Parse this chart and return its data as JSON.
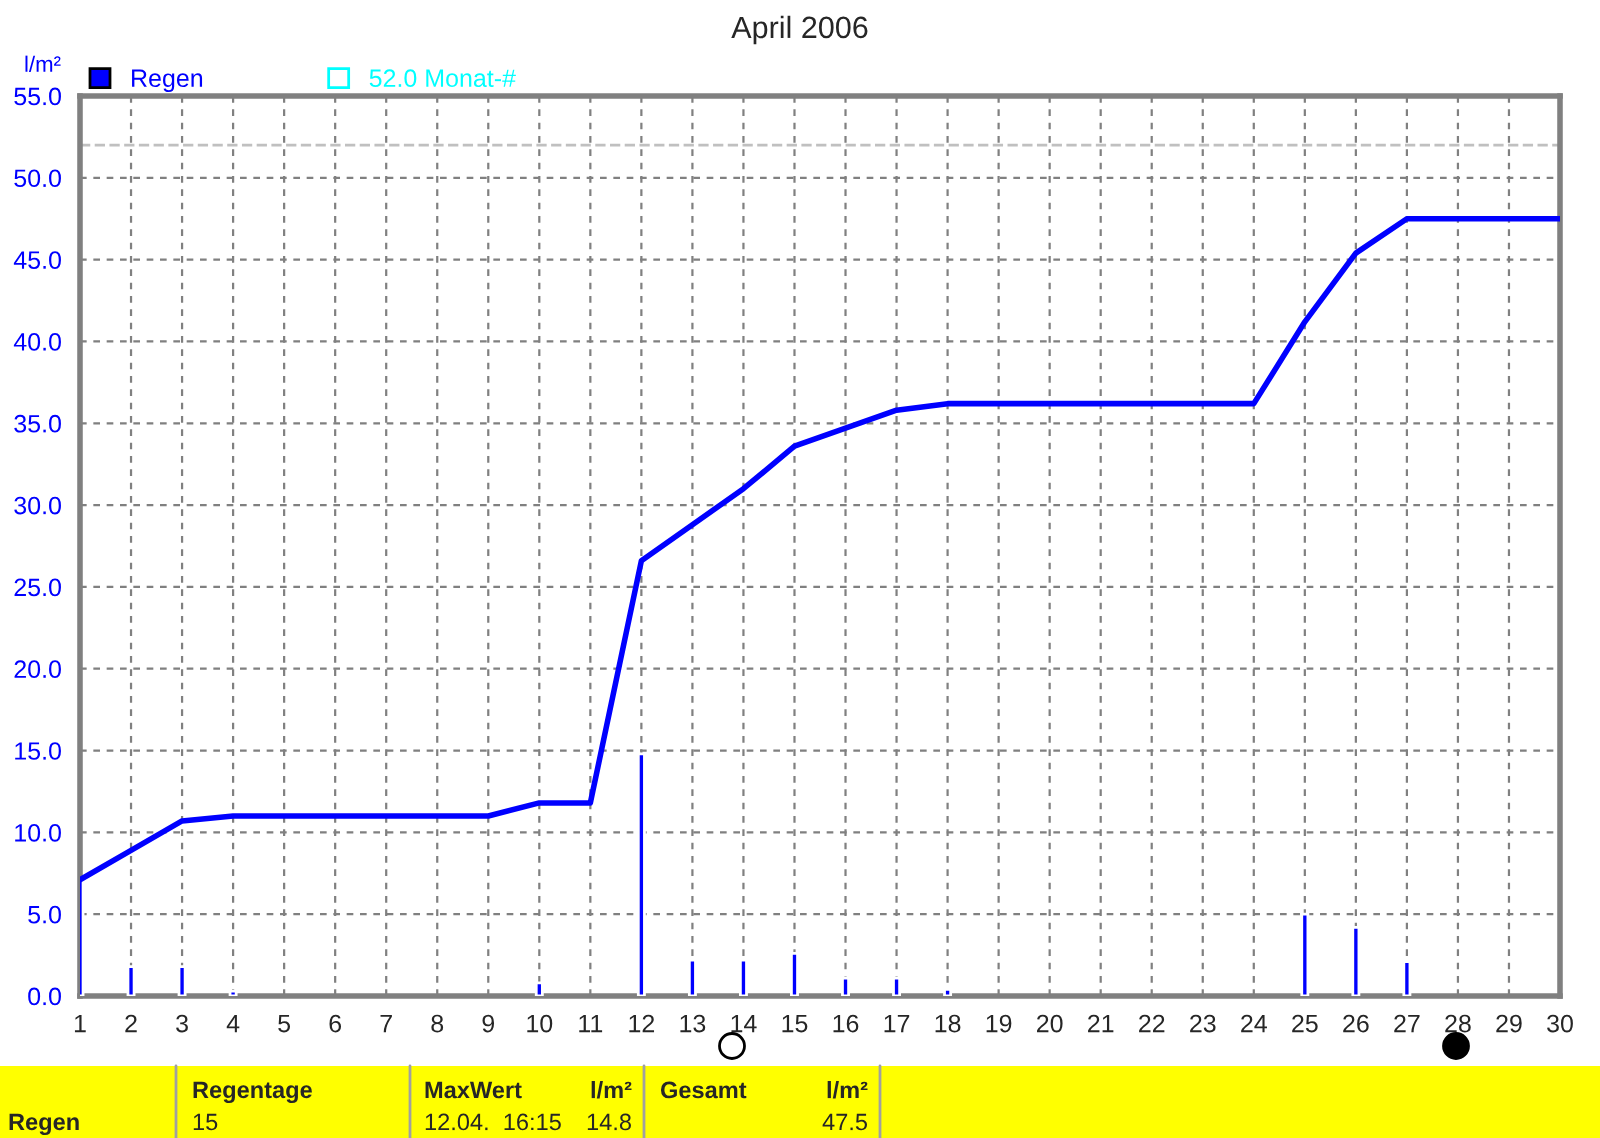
{
  "chart_data": {
    "type": "bar",
    "title": "April 2006",
    "ylabel": "l/m²",
    "categories": [
      "1",
      "2",
      "3",
      "4",
      "5",
      "6",
      "7",
      "8",
      "9",
      "10",
      "11",
      "12",
      "13",
      "14",
      "15",
      "16",
      "17",
      "18",
      "19",
      "20",
      "21",
      "22",
      "23",
      "24",
      "25",
      "26",
      "27",
      "28",
      "29",
      "30"
    ],
    "series": [
      {
        "name": "Regen",
        "color": "#0000ff",
        "values": [
          7.1,
          1.8,
          1.8,
          0.3,
          null,
          null,
          null,
          null,
          null,
          0.8,
          null,
          14.8,
          2.2,
          2.2,
          2.6,
          1.1,
          1.1,
          0.4,
          null,
          null,
          null,
          null,
          null,
          null,
          5.0,
          4.2,
          2.1,
          null,
          null,
          null
        ]
      },
      {
        "type": "line",
        "color": "#0000ff",
        "values": [
          7.1,
          8.9,
          10.7,
          11.0,
          11.0,
          11.0,
          11.0,
          11.0,
          11.0,
          11.8,
          11.8,
          26.6,
          28.8,
          31.0,
          33.6,
          34.7,
          35.8,
          36.2,
          36.2,
          36.2,
          36.2,
          36.2,
          36.2,
          36.2,
          41.2,
          45.4,
          47.5,
          47.5,
          47.5,
          47.5
        ]
      }
    ],
    "ylim": [
      0,
      55
    ],
    "yticks": [
      {
        "value": 0,
        "label": "0.0"
      },
      {
        "value": 5,
        "label": "5.0"
      },
      {
        "value": 10,
        "label": "10.0"
      },
      {
        "value": 15,
        "label": "15.0"
      },
      {
        "value": 20,
        "label": "20.0"
      },
      {
        "value": 25,
        "label": "25.0"
      },
      {
        "value": 30,
        "label": "30.0"
      },
      {
        "value": 35,
        "label": "35.0"
      },
      {
        "value": 40,
        "label": "40.0"
      },
      {
        "value": 45,
        "label": "45.0"
      },
      {
        "value": 50,
        "label": "50.0"
      },
      {
        "value": 55,
        "label": "55.0"
      }
    ],
    "ref_lines": [
      {
        "axis": "y",
        "value": 52.0,
        "label": "52.0 Monat-#",
        "color": "#c0c0c0",
        "line_style": "dashed"
      }
    ],
    "grid": true,
    "legend": "top left",
    "line_style": "solid",
    "annotations": [
      "Regen",
      "Regentage",
      "15",
      "MaxWert",
      "l/m²",
      "12.04.  16:15",
      "14.8",
      "Gesamt",
      "l/m²",
      "47.5"
    ]
  }
}
